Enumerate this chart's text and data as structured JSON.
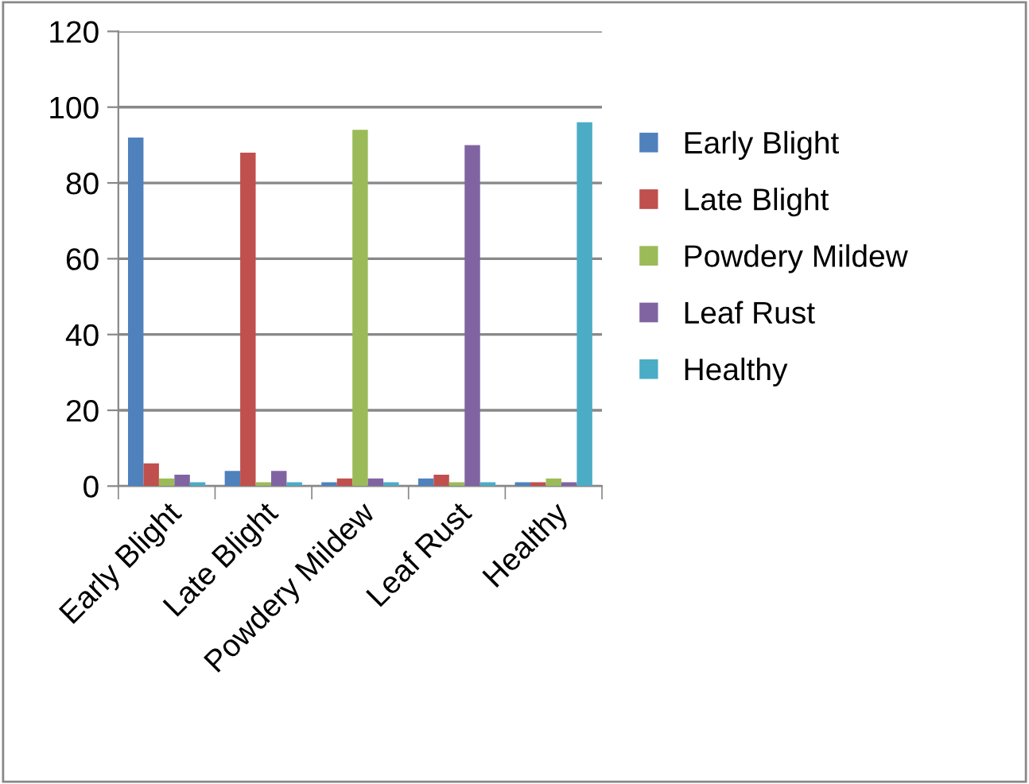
{
  "chart_data": {
    "type": "bar",
    "categories": [
      "Early Blight",
      "Late Blight",
      "Powdery Mildew",
      "Leaf Rust",
      "Healthy"
    ],
    "series": [
      {
        "name": "Early Blight",
        "color": "#4f81bd",
        "values": [
          92,
          4,
          1,
          2,
          1
        ]
      },
      {
        "name": "Late Blight",
        "color": "#c0504d",
        "values": [
          6,
          88,
          2,
          3,
          1
        ]
      },
      {
        "name": "Powdery Mildew",
        "color": "#9bbb59",
        "values": [
          2,
          1,
          94,
          1,
          2
        ]
      },
      {
        "name": "Leaf Rust",
        "color": "#8064a2",
        "values": [
          3,
          4,
          2,
          90,
          1
        ]
      },
      {
        "name": "Healthy",
        "color": "#4bacc6",
        "values": [
          1,
          1,
          1,
          1,
          96
        ]
      }
    ],
    "ylim": [
      0,
      120
    ],
    "yticks": [
      0,
      20,
      40,
      60,
      80,
      100,
      120
    ],
    "grid": "y",
    "legend": "right"
  }
}
